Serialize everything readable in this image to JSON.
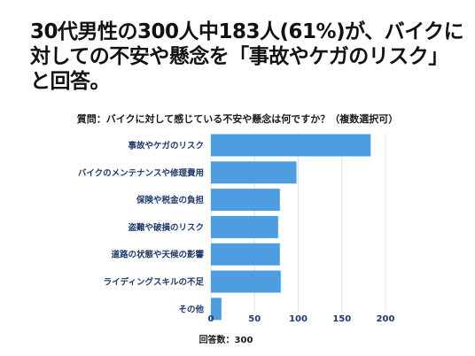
{
  "headline": "30代男性の300人中183人(61%)が、バイクに対しての不安や懸念を「事故やケガのリスク」と回答。",
  "chart_data": {
    "type": "bar",
    "orientation": "horizontal",
    "title": "質問：バイクに対して感じている不安や懸念は何ですか？（複数選択可）",
    "categories": [
      "事故やケガのリスク",
      "バイクのメンテナンスや修理費用",
      "保険や税金の負担",
      "盗難や破損のリスク",
      "道路の状態や天候の影響",
      "ライディングスキルの不足",
      "その他"
    ],
    "values": [
      183,
      98,
      79,
      77,
      79,
      80,
      12
    ],
    "xticks": [
      "0",
      "50",
      "100",
      "150",
      "200"
    ],
    "xlim": [
      0,
      200
    ],
    "grid": true,
    "bar_color": "#4d9de0",
    "xlabel": "回答数：300"
  }
}
